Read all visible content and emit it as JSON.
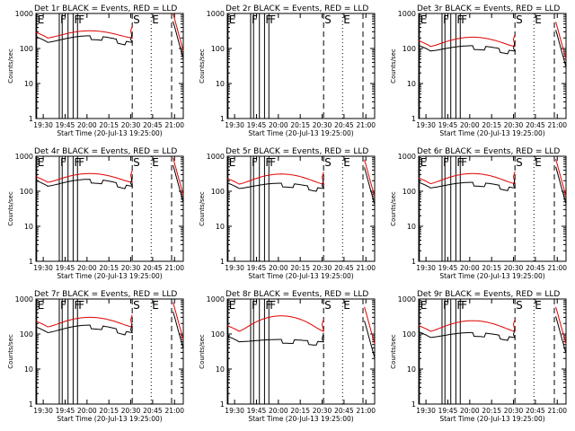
{
  "colors": {
    "events": "#000000",
    "lld": "#e00000",
    "axis": "#000000",
    "background": "#ffffff"
  },
  "shared": {
    "xlabel": "Start Time (20-Jul-13 19:25:00)",
    "ylabel": "Counts/sec",
    "yticks": [
      "1",
      "10",
      "100",
      "1000"
    ],
    "xticks": [
      "19:30",
      "19:45",
      "20:00",
      "20:15",
      "20:30",
      "20:45",
      "21:00"
    ],
    "ylim": [
      1,
      1000
    ],
    "xlim_minutes_after_start": [
      0,
      101
    ],
    "yscale": "log",
    "event_markers": [
      {
        "label": "E",
        "x": 0.5,
        "style": "solid"
      },
      {
        "label": "F",
        "x": 16,
        "style": "solid"
      },
      {
        "label": "F",
        "x": 25.5,
        "style": "solid"
      },
      {
        "label": "F",
        "x": 28.5,
        "style": "solid"
      },
      {
        "label": "S",
        "x": 66,
        "style": "dashed"
      },
      {
        "label": "E",
        "x": 79,
        "style": "dotted"
      },
      {
        "label": "",
        "x": 93,
        "style": "dashed"
      }
    ]
  },
  "chart_data": [
    {
      "type": "line",
      "title": "Det 1r BLACK = Events, RED = LLD",
      "has_data": true,
      "black_base": 150,
      "red_base": 200,
      "red_peak": 320,
      "black_peak": 230
    },
    {
      "type": "line",
      "title": "Det 2r BLACK = Events, RED = LLD",
      "has_data": false
    },
    {
      "type": "line",
      "title": "Det 3r BLACK = Events, RED = LLD",
      "has_data": true,
      "black_base": 85,
      "red_base": 115,
      "red_peak": 210,
      "black_peak": 120
    },
    {
      "type": "line",
      "title": "Det 4r BLACK = Events, RED = LLD",
      "has_data": true,
      "black_base": 140,
      "red_base": 180,
      "red_peak": 320,
      "black_peak": 220
    },
    {
      "type": "line",
      "title": "Det 5r BLACK = Events, RED = LLD",
      "has_data": true,
      "black_base": 120,
      "red_base": 160,
      "red_peak": 310,
      "black_peak": 170
    },
    {
      "type": "line",
      "title": "Det 6r BLACK = Events, RED = LLD",
      "has_data": true,
      "black_base": 125,
      "red_base": 165,
      "red_peak": 320,
      "black_peak": 180
    },
    {
      "type": "line",
      "title": "Det 7r BLACK = Events, RED = LLD",
      "has_data": true,
      "black_base": 110,
      "red_base": 160,
      "red_peak": 300,
      "black_peak": 180
    },
    {
      "type": "line",
      "title": "Det 8r BLACK = Events, RED = LLD",
      "has_data": true,
      "black_base": 60,
      "red_base": 120,
      "red_peak": 330,
      "black_peak": 70
    },
    {
      "type": "line",
      "title": "Det 9r BLACK = Events, RED = LLD",
      "has_data": true,
      "black_base": 80,
      "red_base": 120,
      "red_peak": 240,
      "black_peak": 110
    }
  ]
}
